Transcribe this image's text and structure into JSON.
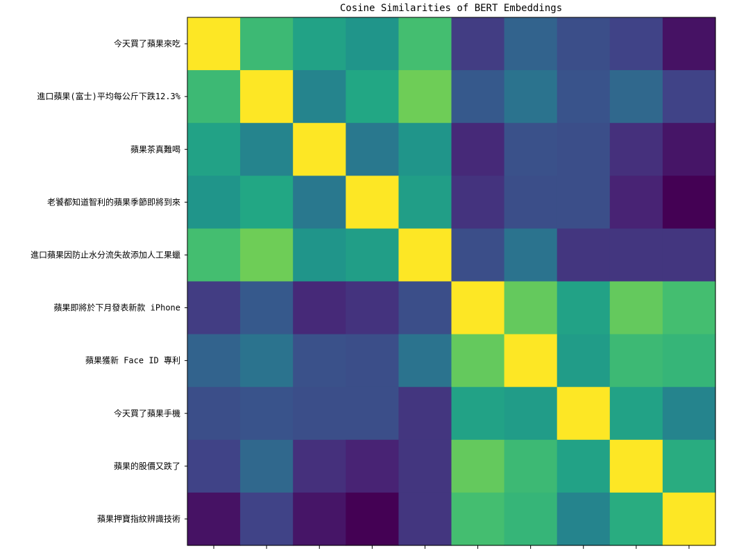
{
  "chart_data": {
    "type": "heatmap",
    "title": "Cosine Similarities of BERT Embeddings",
    "xlabel": "",
    "ylabel": "",
    "colormap": "viridis",
    "value_range": [
      0,
      1
    ],
    "grid": false,
    "legend": "none",
    "labels": [
      "今天買了蘋果來吃",
      "進口蘋果(富士)平均每公斤下跌12.3%",
      "蘋果茶真難喝",
      "老饕都知道智利的蘋果季節即將到來",
      "進口蘋果因防止水分流失故添加人工果蠟",
      "蘋果即將於下月發表新款 iPhone",
      "蘋果獲新 Face ID 專利",
      "今天買了蘋果手機",
      "蘋果的股價又跌了",
      "蘋果押寶指紋辨識技術"
    ],
    "matrix": [
      [
        1.0,
        0.68,
        0.58,
        0.52,
        0.7,
        0.18,
        0.32,
        0.24,
        0.2,
        0.05
      ],
      [
        0.68,
        1.0,
        0.45,
        0.6,
        0.78,
        0.28,
        0.38,
        0.26,
        0.34,
        0.2
      ],
      [
        0.58,
        0.45,
        1.0,
        0.4,
        0.52,
        0.12,
        0.25,
        0.24,
        0.14,
        0.06
      ],
      [
        0.52,
        0.6,
        0.4,
        1.0,
        0.56,
        0.15,
        0.24,
        0.24,
        0.1,
        0.0
      ],
      [
        0.7,
        0.78,
        0.52,
        0.56,
        1.0,
        0.24,
        0.38,
        0.16,
        0.16,
        0.16
      ],
      [
        0.18,
        0.28,
        0.12,
        0.15,
        0.24,
        1.0,
        0.76,
        0.58,
        0.76,
        0.7
      ],
      [
        0.32,
        0.38,
        0.25,
        0.24,
        0.38,
        0.76,
        1.0,
        0.55,
        0.68,
        0.66
      ],
      [
        0.24,
        0.26,
        0.24,
        0.24,
        0.16,
        0.58,
        0.55,
        1.0,
        0.58,
        0.45
      ],
      [
        0.2,
        0.34,
        0.14,
        0.1,
        0.16,
        0.76,
        0.68,
        0.58,
        1.0,
        0.62
      ],
      [
        0.05,
        0.2,
        0.06,
        0.0,
        0.16,
        0.7,
        0.66,
        0.45,
        0.62,
        1.0
      ]
    ]
  }
}
